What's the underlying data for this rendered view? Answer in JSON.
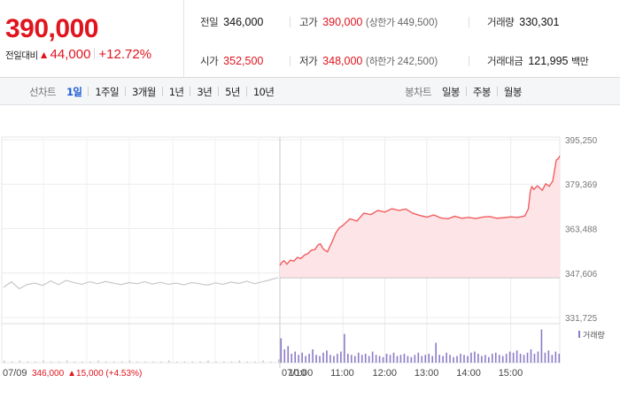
{
  "quote": {
    "price": "390,000",
    "change_label": "전일대비",
    "change_arrow": "▲",
    "change_amount": "44,000",
    "change_rate": "+12.72%"
  },
  "stats": {
    "prev_label": "전일",
    "prev_value": "346,000",
    "high_label": "고가",
    "high_value": "390,000",
    "upper_limit_label": "상한가",
    "upper_limit_value": "449,500",
    "volume_label": "거래량",
    "volume_value": "330,301",
    "open_label": "시가",
    "open_value": "352,500",
    "low_label": "저가",
    "low_value": "348,000",
    "lower_limit_label": "하한가",
    "lower_limit_value": "242,500",
    "amount_label": "거래대금",
    "amount_value": "121,995",
    "amount_unit": "백만"
  },
  "tabs": {
    "line_label": "선차트",
    "line_periods": [
      "1일",
      "1주일",
      "3개월",
      "1년",
      "3년",
      "5년",
      "10년"
    ],
    "active_line_period": "1일",
    "candle_label": "봉차트",
    "candle_periods": [
      "일봉",
      "주봉",
      "월봉"
    ]
  },
  "chart_data": {
    "type": "line",
    "y_ticks": [
      "395,250",
      "379,369",
      "363,488",
      "347,606",
      "331,725"
    ],
    "ylim": [
      331725,
      395250
    ],
    "prev_close": 346000,
    "prev_day": {
      "date_label": "07/09",
      "footer_price": "346,000",
      "footer_change": "▲15,000 (+4.53%)",
      "values": [
        342500,
        344500,
        342000,
        343500,
        344000,
        343200,
        344800,
        343500,
        345000,
        344200,
        343600,
        344500,
        343800,
        344600,
        344000,
        343500,
        344200,
        343800,
        344500,
        343700,
        344300,
        343600,
        344000,
        343400,
        344200,
        343800,
        343300,
        344100,
        343600,
        344400,
        343900,
        344700,
        343800,
        344500,
        345200,
        346000
      ]
    },
    "today": {
      "date_label": "07/10",
      "x_ticks": [
        "10:00",
        "11:00",
        "12:00",
        "13:00",
        "14:00",
        "15:00"
      ],
      "x": [
        0,
        3,
        6,
        10,
        15,
        20,
        25,
        30,
        35,
        40,
        45,
        50,
        55,
        58,
        62,
        68,
        75,
        80,
        85,
        90,
        100,
        110,
        120,
        130,
        140,
        150,
        160,
        170,
        180,
        190,
        200,
        210,
        220,
        230,
        240,
        250,
        260,
        270,
        280,
        290,
        300,
        310,
        320,
        330,
        340,
        350,
        355,
        358,
        360,
        363,
        368,
        375,
        380,
        385,
        390,
        395,
        398,
        400
      ],
      "values": [
        350300,
        351500,
        352000,
        350800,
        352200,
        351900,
        353200,
        352800,
        354000,
        354600,
        355800,
        356000,
        357800,
        358000,
        356200,
        355200,
        359000,
        362000,
        363800,
        364600,
        367000,
        366200,
        369000,
        368500,
        370000,
        369400,
        370600,
        370000,
        370500,
        369000,
        368200,
        367600,
        368400,
        367300,
        367000,
        367900,
        367200,
        367500,
        367100,
        367600,
        367800,
        367200,
        367400,
        367700,
        367500,
        368000,
        370500,
        377000,
        378500,
        377500,
        378800,
        377200,
        379500,
        378600,
        380500,
        388000,
        388500,
        389500
      ]
    },
    "volume_legend": "거래량",
    "volume_prev": [
      2,
      1,
      2,
      1,
      1,
      2,
      1,
      1,
      2,
      1,
      1,
      1,
      2,
      1,
      1,
      1,
      2,
      1,
      1,
      1,
      1,
      2,
      1,
      1,
      1,
      1,
      2,
      1,
      1,
      1,
      2,
      1,
      1,
      2,
      1,
      3
    ],
    "volume_today": [
      22,
      12,
      15,
      8,
      10,
      7,
      9,
      6,
      8,
      12,
      7,
      6,
      9,
      11,
      7,
      6,
      8,
      10,
      26,
      8,
      7,
      6,
      9,
      7,
      8,
      6,
      10,
      7,
      6,
      5,
      8,
      7,
      9,
      6,
      7,
      8,
      6,
      5,
      7,
      9,
      6,
      7,
      8,
      6,
      18,
      7,
      6,
      9,
      7,
      5,
      6,
      8,
      7,
      6,
      9,
      10,
      8,
      6,
      7,
      5,
      8,
      9,
      7,
      6,
      8,
      10,
      9,
      11,
      8,
      7,
      9,
      12,
      8,
      10,
      30,
      9,
      11,
      7,
      10,
      8
    ]
  }
}
